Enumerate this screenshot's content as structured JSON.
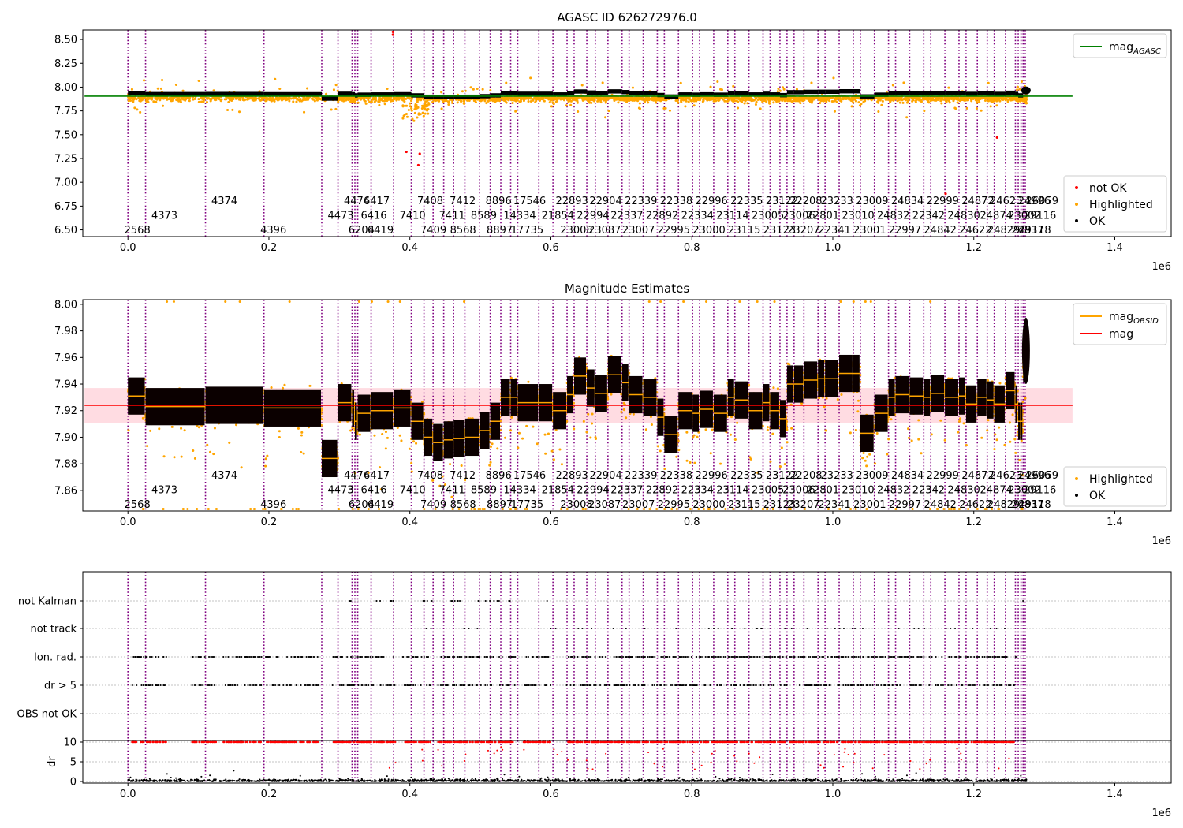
{
  "chart_data": [
    {
      "type": "scatter",
      "title": "AGASC ID 626272976.0",
      "xlabel": "",
      "ylabel": "",
      "x_offset_label": "1e6",
      "xlim": [
        -0.064,
        1.48
      ],
      "ylim": [
        6.43,
        8.6
      ],
      "xticks": [
        0.0,
        0.2,
        0.4,
        0.6,
        0.8,
        1.0,
        1.2,
        1.4
      ],
      "xtick_labels": [
        "0.0",
        "0.2",
        "0.4",
        "0.6",
        "0.8",
        "1.0",
        "1.2",
        "1.4"
      ],
      "yticks": [
        6.5,
        6.75,
        7.0,
        7.25,
        7.5,
        7.75,
        8.0,
        8.25,
        8.5
      ],
      "ytick_labels": [
        "6.50",
        "6.75",
        "7.00",
        "7.25",
        "7.50",
        "7.75",
        "8.00",
        "8.25",
        "8.50"
      ],
      "grid": false,
      "line_legend": {
        "placement": "top-right",
        "entries": [
          {
            "main": "mag",
            "sub": "AGASC",
            "color": "#008000"
          }
        ]
      },
      "point_legend": {
        "placement": "bottom-right",
        "entries": [
          {
            "name": "not OK",
            "color": "#ff0000"
          },
          {
            "name": "Highlighted",
            "color": "#ffa500"
          },
          {
            "name": "OK",
            "color": "#000000"
          }
        ]
      },
      "mag_agasc": 7.905,
      "band_y": [
        7.9,
        7.96
      ],
      "red_points": [
        {
          "x": 0.376,
          "y": 8.58
        },
        {
          "x": 0.376,
          "y": 8.55
        },
        {
          "x": 0.395,
          "y": 7.32
        },
        {
          "x": 0.412,
          "y": 7.18
        },
        {
          "x": 0.414,
          "y": 7.3
        },
        {
          "x": 1.233,
          "y": 7.47
        },
        {
          "x": 1.16,
          "y": 6.88
        }
      ]
    },
    {
      "type": "scatter",
      "title": "Magnitude Estimates",
      "xlabel": "",
      "ylabel": "",
      "x_offset_label": "1e6",
      "xlim": [
        -0.064,
        1.48
      ],
      "ylim": [
        7.8445,
        8.0035
      ],
      "xticks": [
        0.0,
        0.2,
        0.4,
        0.6,
        0.8,
        1.0,
        1.2,
        1.4
      ],
      "xtick_labels": [
        "0.0",
        "0.2",
        "0.4",
        "0.6",
        "0.8",
        "1.0",
        "1.2",
        "1.4"
      ],
      "yticks": [
        7.86,
        7.88,
        7.9,
        7.92,
        7.94,
        7.96,
        7.98,
        8.0
      ],
      "ytick_labels": [
        "7.86",
        "7.88",
        "7.90",
        "7.92",
        "7.94",
        "7.96",
        "7.98",
        "8.00"
      ],
      "grid": false,
      "line_legend": {
        "placement": "top-right",
        "entries": [
          {
            "main": "mag",
            "sub": "OBSID",
            "color": "#ffa500"
          },
          {
            "main": "mag",
            "sub": "",
            "color": "#ff0000"
          }
        ]
      },
      "point_legend": {
        "placement": "bottom-right",
        "entries": [
          {
            "name": "Highlighted",
            "color": "#ffa500"
          },
          {
            "name": "OK",
            "color": "#000000"
          }
        ]
      },
      "mag": 7.924,
      "mag_band": [
        7.9105,
        7.937
      ]
    },
    {
      "type": "scatter",
      "title": "",
      "xlabel": "",
      "ylabel": "dr",
      "x_offset_label": "1e6",
      "xlim": [
        -0.064,
        1.48
      ],
      "xticks": [
        0.0,
        0.2,
        0.4,
        0.6,
        0.8,
        1.0,
        1.2,
        1.4
      ],
      "xtick_labels": [
        "0.0",
        "0.2",
        "0.4",
        "0.6",
        "0.8",
        "1.0",
        "1.2",
        "1.4"
      ],
      "flag_rows": [
        "not Kalman",
        "not track",
        "Ion. rad.",
        "dr > 5",
        "OBS not OK"
      ],
      "dr_yticks": [
        0,
        5,
        10
      ],
      "dr_ytick_labels": [
        "0",
        "5",
        "10"
      ],
      "grid": true
    }
  ],
  "obsids": [
    {
      "label": "2568",
      "x": 0.0
    },
    {
      "label": "4373",
      "x": 0.025
    },
    {
      "label": "4374",
      "x": 0.11
    },
    {
      "label": "4396",
      "x": 0.193
    },
    {
      "label": "4473",
      "x": 0.275
    },
    {
      "label": "4474",
      "x": 0.298
    },
    {
      "label": "6204",
      "x": 0.318
    },
    {
      "label": "6416",
      "x": 0.322
    },
    {
      "label": "6417",
      "x": 0.326
    },
    {
      "label": "6419",
      "x": 0.345
    },
    {
      "label": "7410",
      "x": 0.377
    },
    {
      "label": "7408",
      "x": 0.402
    },
    {
      "label": "7409",
      "x": 0.42
    },
    {
      "label": "7411",
      "x": 0.433
    },
    {
      "label": "7412",
      "x": 0.448
    },
    {
      "label": "8568",
      "x": 0.462
    },
    {
      "label": "8589",
      "x": 0.478
    },
    {
      "label": "8896",
      "x": 0.499
    },
    {
      "label": "8897",
      "x": 0.514
    },
    {
      "label": "14334",
      "x": 0.529
    },
    {
      "label": "17546",
      "x": 0.543
    },
    {
      "label": "17735",
      "x": 0.553
    },
    {
      "label": "21854",
      "x": 0.583
    },
    {
      "label": "22893",
      "x": 0.603
    },
    {
      "label": "23008",
      "x": 0.623
    },
    {
      "label": "22994",
      "x": 0.633
    },
    {
      "label": "22904",
      "x": 0.651
    },
    {
      "label": "23087",
      "x": 0.663
    },
    {
      "label": "22337",
      "x": 0.681
    },
    {
      "label": "22339",
      "x": 0.701
    },
    {
      "label": "23007",
      "x": 0.711
    },
    {
      "label": "22892",
      "x": 0.731
    },
    {
      "label": "22338",
      "x": 0.751
    },
    {
      "label": "22995",
      "x": 0.761
    },
    {
      "label": "22334",
      "x": 0.781
    },
    {
      "label": "22996",
      "x": 0.801
    },
    {
      "label": "23000",
      "x": 0.811
    },
    {
      "label": "23114",
      "x": 0.831
    },
    {
      "label": "22335",
      "x": 0.851
    },
    {
      "label": "23115",
      "x": 0.861
    },
    {
      "label": "23005",
      "x": 0.881
    },
    {
      "label": "23122",
      "x": 0.901
    },
    {
      "label": "23123",
      "x": 0.911
    },
    {
      "label": "23006",
      "x": 0.925
    },
    {
      "label": "22208",
      "x": 0.935
    },
    {
      "label": "23207",
      "x": 0.945
    },
    {
      "label": "22801",
      "x": 0.959
    },
    {
      "label": "23233",
      "x": 0.979
    },
    {
      "label": "22341",
      "x": 0.989
    },
    {
      "label": "23010",
      "x": 1.009
    },
    {
      "label": "23009",
      "x": 1.029
    },
    {
      "label": "23001",
      "x": 1.039
    },
    {
      "label": "24832",
      "x": 1.059
    },
    {
      "label": "24834",
      "x": 1.079
    },
    {
      "label": "22997",
      "x": 1.089
    },
    {
      "label": "22342",
      "x": 1.109
    },
    {
      "label": "22999",
      "x": 1.129
    },
    {
      "label": "24842",
      "x": 1.139
    },
    {
      "label": "24830",
      "x": 1.159
    },
    {
      "label": "24872",
      "x": 1.179
    },
    {
      "label": "24622",
      "x": 1.189
    },
    {
      "label": "24874",
      "x": 1.205
    },
    {
      "label": "24623",
      "x": 1.219
    },
    {
      "label": "24829",
      "x": 1.229
    },
    {
      "label": "23002",
      "x": 1.245
    },
    {
      "label": "24996",
      "x": 1.259
    },
    {
      "label": "24837",
      "x": 1.263
    },
    {
      "label": "29116",
      "x": 1.267
    },
    {
      "label": "26059",
      "x": 1.27
    },
    {
      "label": "29118",
      "x": 1.273
    }
  ]
}
